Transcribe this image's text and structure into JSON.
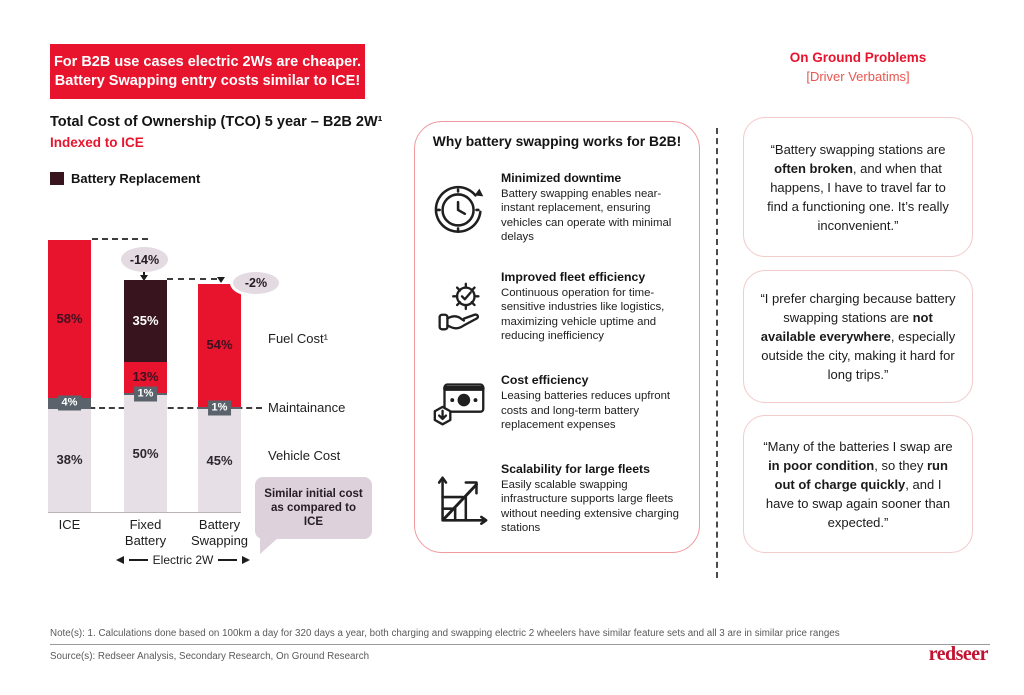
{
  "banner": {
    "line1": "For B2B use cases electric 2Ws are cheaper.",
    "line2": "Battery Swapping entry costs similar to ICE!"
  },
  "colors": {
    "brand_red": "#e8142d",
    "battery_replacement_dark": "#38141f",
    "maintenance_gray": "#5a636b",
    "vehicle_cost_lavender": "#e6e0e6",
    "bubble_mauve": "#e3dae2",
    "callout_mauve": "#ddd1dc",
    "panel_border_pink": "#ef9aa0",
    "quote_border_pink": "#f2cbcb",
    "logo_red": "#c31230"
  },
  "chart_data": {
    "type": "bar",
    "subtype": "stacked",
    "title": "Total Cost of Ownership (TCO) 5 year – B2B 2W¹",
    "subtitle": "Indexed to ICE",
    "legend": [
      {
        "label": "Battery Replacement",
        "color": "#38141f"
      }
    ],
    "categories": [
      [
        "ICE"
      ],
      [
        "Fixed",
        "Battery"
      ],
      [
        "Battery",
        "Swapping"
      ]
    ],
    "bar_totals_indexed_to_ICE": [
      100,
      86,
      84
    ],
    "series": [
      {
        "name": "Vehicle Cost",
        "color": "#e6e0e6",
        "label_color": "#2f2630",
        "values_pct": [
          38,
          50,
          45
        ]
      },
      {
        "name": "Maintainance",
        "color": "#5a636b",
        "label_color": "#ffffff",
        "values_pct": [
          4,
          1,
          1
        ],
        "label_style": "badge"
      },
      {
        "name": "Fuel Cost¹",
        "color": "#e8142d",
        "label_color": "#3f1020",
        "values_pct": [
          58,
          13,
          54
        ]
      },
      {
        "name": "Battery Replacement",
        "color": "#38141f",
        "label_color": "#ffffff",
        "values_pct": [
          0,
          35,
          0
        ]
      }
    ],
    "deltas": [
      {
        "target": "Fixed Battery",
        "label": "-14%"
      },
      {
        "target": "Battery Swapping",
        "label": "-2%"
      }
    ],
    "right_labels": [
      "Fuel Cost¹",
      "Maintainance",
      "Vehicle Cost"
    ],
    "callout": "Similar initial cost as compared to ICE",
    "axis_note": "Electric 2W"
  },
  "benefits": {
    "title": "Why battery swapping works for B2B!",
    "items": [
      {
        "icon": "clock-refresh-icon",
        "title": "Minimized downtime",
        "body": "Battery swapping enables near-instant replacement, ensuring vehicles can operate with minimal delays"
      },
      {
        "icon": "gear-hand-icon",
        "title": "Improved fleet efficiency",
        "body": "Continuous operation for time-sensitive industries like logistics, maximizing vehicle uptime and reducing inefficiency"
      },
      {
        "icon": "cash-decrease-icon",
        "title": "Cost efficiency",
        "body": "Leasing batteries reduces upfront costs and long-term battery replacement expenses"
      },
      {
        "icon": "growth-chart-icon",
        "title": "Scalability for large fleets",
        "body": "Easily scalable swapping infrastructure supports large fleets without needing extensive charging stations"
      }
    ]
  },
  "problems": {
    "title": "On Ground Problems",
    "subtitle": "[Driver Verbatims]",
    "quotes": [
      [
        {
          "t": "“Battery swapping stations are "
        },
        {
          "t": "often broken",
          "b": true
        },
        {
          "t": ", and when that happens, I have to travel far to find a functioning one. It’s really inconvenient.”"
        }
      ],
      [
        {
          "t": "“I prefer charging because battery swapping stations are "
        },
        {
          "t": "not available everywhere",
          "b": true
        },
        {
          "t": ", especially outside the city, making it hard for long trips.”"
        }
      ],
      [
        {
          "t": "“Many of the batteries I swap are "
        },
        {
          "t": "in poor condition",
          "b": true
        },
        {
          "t": ", so they "
        },
        {
          "t": "run out of charge quickly",
          "b": true
        },
        {
          "t": ", and I have to swap again sooner than expected.”"
        }
      ]
    ]
  },
  "footer": {
    "note": "Note(s): 1. Calculations done based on 100km a day for 320 days a year, both charging and swapping electric 2 wheelers have similar feature sets and all 3 are in similar price ranges",
    "source": "Source(s): Redseer Analysis, Secondary Research, On Ground Research",
    "logo": "redseer"
  }
}
